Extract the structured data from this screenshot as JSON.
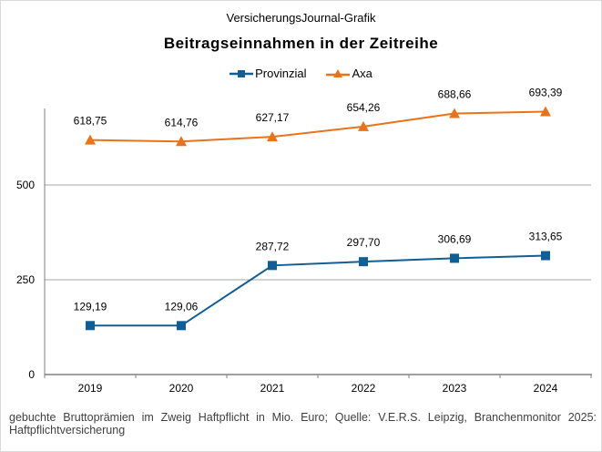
{
  "chart_data": {
    "type": "line",
    "source_label": "VersicherungsJournal-Grafik",
    "title": "Beitragseinnahmen  in der Zeitreihe",
    "categories": [
      "2019",
      "2020",
      "2021",
      "2022",
      "2023",
      "2024"
    ],
    "series": [
      {
        "name": "Provinzial",
        "values": [
          129.19,
          129.06,
          287.72,
          297.7,
          306.69,
          313.65
        ],
        "labels": [
          "129,19",
          "129,06",
          "287,72",
          "297,70",
          "306,69",
          "313,65"
        ],
        "color": "#0f5e96",
        "marker": "square"
      },
      {
        "name": "Axa",
        "values": [
          618.75,
          614.76,
          627.17,
          654.26,
          688.66,
          693.39
        ],
        "labels": [
          "618,75",
          "614,76",
          "627,17",
          "654,26",
          "688,66",
          "693,39"
        ],
        "color": "#e8731a",
        "marker": "triangle"
      }
    ],
    "yticks": [
      0,
      250,
      500
    ],
    "ytick_labels": [
      "0",
      "250",
      "500"
    ],
    "ylim": [
      0,
      750
    ],
    "grid": true,
    "legend": "top",
    "footnote": "gebuchte Bruttoprämien im Zweig Haftpflicht in Mio. Euro; Quelle: V.E.R.S. Leipzig, Branchenmonitor 2025: Haftpflichtversicherung"
  }
}
